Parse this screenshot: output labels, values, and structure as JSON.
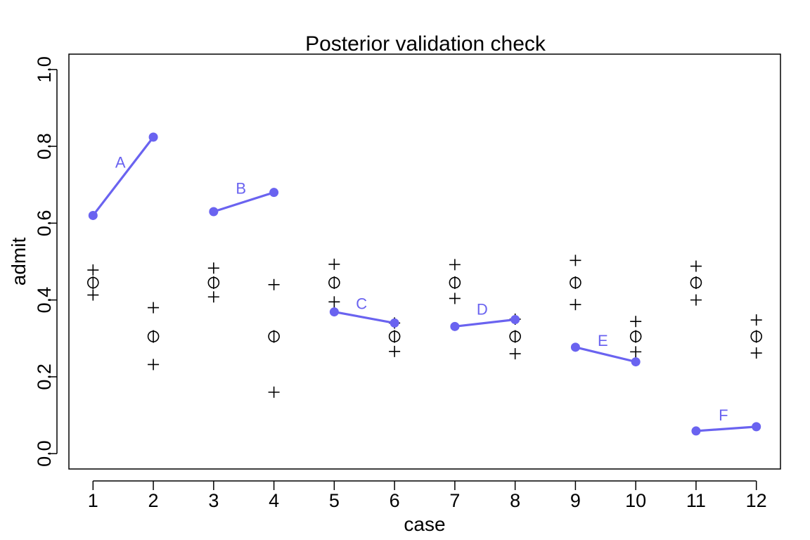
{
  "chart_data": {
    "type": "scatter",
    "title": "Posterior validation check",
    "xlabel": "case",
    "ylabel": "admit",
    "xlim": [
      0.6,
      12.4
    ],
    "ylim": [
      -0.04,
      1.04
    ],
    "x_ticks": [
      "1",
      "2",
      "3",
      "4",
      "5",
      "6",
      "7",
      "8",
      "9",
      "10",
      "11",
      "12"
    ],
    "y_ticks": [
      "0.0",
      "0.2",
      "0.4",
      "0.6",
      "0.8",
      "1.0"
    ],
    "grid": false,
    "colors": {
      "observed": "#6a63f0",
      "predicted": "#000000"
    },
    "observed_groups": [
      {
        "label": "A",
        "points": [
          [
            1,
            0.62
          ],
          [
            2,
            0.824
          ]
        ]
      },
      {
        "label": "B",
        "points": [
          [
            3,
            0.63
          ],
          [
            4,
            0.68
          ]
        ]
      },
      {
        "label": "C",
        "points": [
          [
            5,
            0.369
          ],
          [
            6,
            0.34
          ]
        ]
      },
      {
        "label": "D",
        "points": [
          [
            7,
            0.331
          ],
          [
            8,
            0.349
          ]
        ]
      },
      {
        "label": "E",
        "points": [
          [
            9,
            0.277
          ],
          [
            10,
            0.239
          ]
        ]
      },
      {
        "label": "F",
        "points": [
          [
            11,
            0.059
          ],
          [
            12,
            0.07
          ]
        ]
      }
    ],
    "predicted": {
      "x": [
        1,
        2,
        3,
        4,
        5,
        6,
        7,
        8,
        9,
        10,
        11,
        12
      ],
      "mean": [
        0.445,
        0.305,
        0.445,
        0.305,
        0.445,
        0.305,
        0.445,
        0.305,
        0.445,
        0.305,
        0.445,
        0.305
      ],
      "lower": [
        0.413,
        0.232,
        0.408,
        0.16,
        0.395,
        0.266,
        0.404,
        0.26,
        0.388,
        0.265,
        0.4,
        0.262
      ],
      "upper": [
        0.478,
        0.38,
        0.483,
        0.44,
        0.493,
        0.34,
        0.492,
        0.35,
        0.503,
        0.344,
        0.488,
        0.348
      ]
    }
  }
}
